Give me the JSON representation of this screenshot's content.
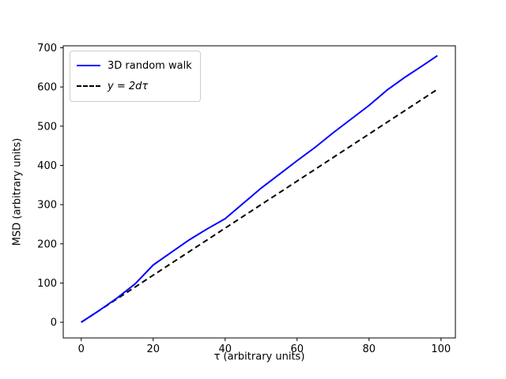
{
  "chart_data": {
    "type": "line",
    "title": "",
    "xlabel": "τ (arbitrary units)",
    "ylabel": "MSD (arbitrary units)",
    "xlim": [
      -5,
      104
    ],
    "ylim": [
      -40,
      705
    ],
    "x_ticks": [
      0,
      20,
      40,
      60,
      80,
      100
    ],
    "y_ticks": [
      0,
      100,
      200,
      300,
      400,
      500,
      600,
      700
    ],
    "grid": false,
    "legend_position": "upper left",
    "series": [
      {
        "name": "3D random walk",
        "color": "#0000ff",
        "style": "solid",
        "x": [
          0,
          5,
          10,
          15,
          20,
          25,
          30,
          35,
          40,
          45,
          50,
          55,
          60,
          65,
          70,
          75,
          80,
          85,
          90,
          95,
          99
        ],
        "y": [
          0,
          30,
          62,
          98,
          146,
          178,
          210,
          238,
          264,
          303,
          342,
          377,
          412,
          446,
          483,
          518,
          553,
          592,
          625,
          655,
          680
        ]
      },
      {
        "name": "y = 2dτ",
        "color": "#000000",
        "style": "dashed",
        "x": [
          0,
          99
        ],
        "y": [
          0,
          594
        ]
      }
    ]
  },
  "colors": {
    "walk_line": "#0000ff",
    "theory_line": "#000000",
    "spine": "#000000",
    "legend_border": "#cccccc"
  }
}
